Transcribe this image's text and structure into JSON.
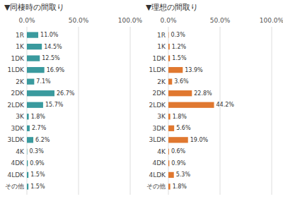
{
  "chart_data": [
    {
      "type": "bar",
      "orientation": "horizontal",
      "title": "▼同棲時の間取り",
      "categories": [
        "1R",
        "1K",
        "1DK",
        "1LDK",
        "2K",
        "2DK",
        "2LDK",
        "3K",
        "3DK",
        "3LDK",
        "4K",
        "4DK",
        "4LDK",
        "その他"
      ],
      "values": [
        11.0,
        14.5,
        12.5,
        16.9,
        7.1,
        26.7,
        15.7,
        1.8,
        2.7,
        6.2,
        0.3,
        0.9,
        1.5,
        1.5
      ],
      "value_labels": [
        "11.0%",
        "14.5%",
        "12.5%",
        "16.9%",
        "7.1%",
        "26.7%",
        "15.7%",
        "1.8%",
        "2.7%",
        "6.2%",
        "0.3%",
        "0.9%",
        "1.5%",
        "1.5%"
      ],
      "data_labels": true,
      "color": "#3a9a9e",
      "xlim": [
        0,
        100
      ],
      "xticks": [
        {
          "value": 0,
          "label": "0.0%"
        },
        {
          "value": 50,
          "label": "50.0%"
        },
        {
          "value": 100,
          "label": "100.0%"
        }
      ],
      "grid": true
    },
    {
      "type": "bar",
      "orientation": "horizontal",
      "title": "▼理想の間取り",
      "categories": [
        "1R",
        "1K",
        "1DK",
        "1LDK",
        "2K",
        "2DK",
        "2LDK",
        "3K",
        "3DK",
        "3LDK",
        "4K",
        "4DK",
        "4LDK",
        "その他"
      ],
      "values": [
        0.3,
        1.2,
        1.5,
        13.9,
        3.6,
        22.8,
        44.2,
        1.8,
        5.6,
        19.0,
        0.6,
        0.9,
        5.3,
        1.8
      ],
      "value_labels": [
        "0.3%",
        "1.2%",
        "1.5%",
        "13.9%",
        "3.6%",
        "22.8%",
        "44.2%",
        "1.8%",
        "5.6%",
        "19.0%",
        "0.6%",
        "0.9%",
        "5.3%",
        "1.8%"
      ],
      "data_labels": true,
      "color": "#e07830",
      "xlim": [
        0,
        100
      ],
      "xticks": [
        {
          "value": 0,
          "label": "0.0%"
        },
        {
          "value": 50,
          "label": "50.0%"
        },
        {
          "value": 100,
          "label": "100.0%"
        }
      ],
      "grid": true
    }
  ]
}
